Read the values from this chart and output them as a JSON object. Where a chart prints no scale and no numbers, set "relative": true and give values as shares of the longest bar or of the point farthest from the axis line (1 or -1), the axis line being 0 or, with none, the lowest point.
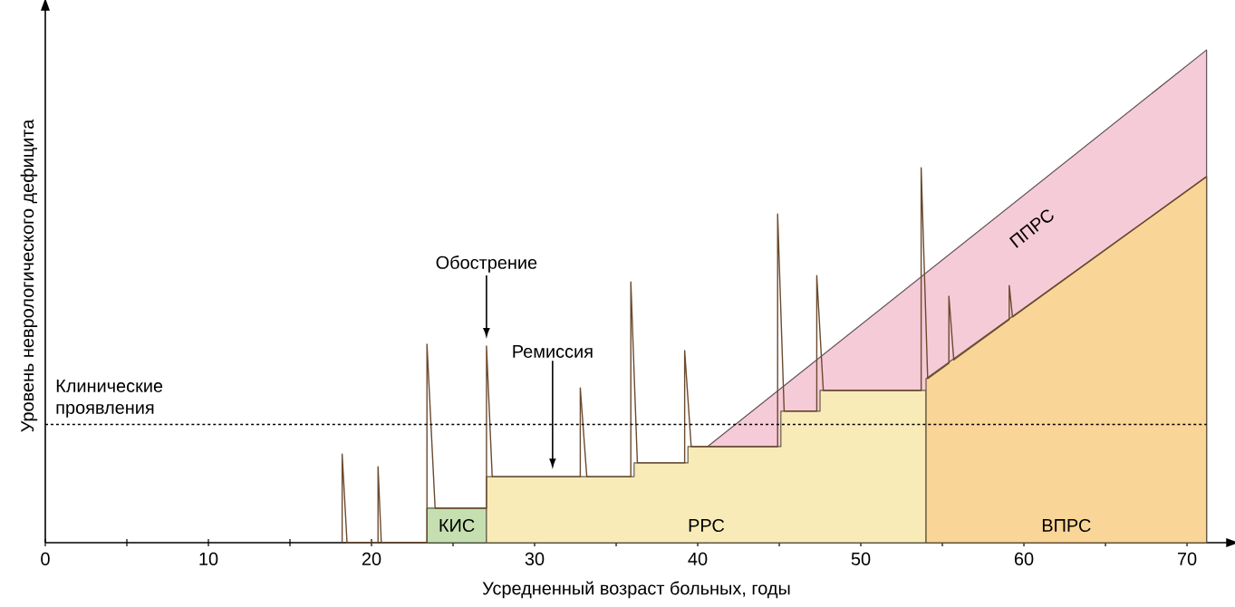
{
  "chart_data": {
    "type": "area",
    "relative": true,
    "xlabel": "Усредненный возраст больных, годы",
    "ylabel": "Уровень неврологического дефицита",
    "xlim": [
      0,
      72.5
    ],
    "xticks": [
      0,
      {
        "value": 5,
        "label": null
      },
      10,
      {
        "value": 15,
        "label": null
      },
      20,
      {
        "value": 25,
        "label": null
      },
      30,
      {
        "value": 35,
        "label": null
      },
      40,
      {
        "value": 45,
        "label": null
      },
      50,
      {
        "value": 55,
        "label": null
      },
      60,
      {
        "value": 65,
        "label": null
      },
      70
    ],
    "series": [
      {
        "name": "ППРС",
        "color": "#f6cbd8",
        "x": [
          40.6,
          71.2
        ],
        "values": [
          0.195,
          1.0
        ]
      },
      {
        "name": "КИС",
        "color": "#c5dfb0",
        "x": [
          23.4,
          27.05
        ],
        "values": [
          0.07,
          0.07
        ]
      },
      {
        "name": "РРС",
        "color": "#f9ebb8",
        "x": [
          27.05,
          36.1,
          36.1,
          39.4,
          39.4,
          45.1,
          45.1,
          47.5,
          47.5,
          54.0
        ],
        "values": [
          0.134,
          0.134,
          0.162,
          0.162,
          0.195,
          0.195,
          0.267,
          0.267,
          0.309,
          0.309
        ]
      },
      {
        "name": "ВПРС",
        "color": "#f9d597",
        "x": [
          54.0,
          54.0,
          71.2
        ],
        "values": [
          0,
          0.333,
          0.743
        ]
      },
      {
        "type": "line",
        "color": "#6b4a2e",
        "x": [
          18.2,
          18.2,
          18.5,
          20.4,
          20.4,
          20.6,
          23.4,
          23.4,
          23.9,
          27.05,
          27.05,
          27.4,
          32.8,
          32.8,
          33.2,
          35.9,
          35.9,
          36.3,
          39.2,
          39.2,
          39.6,
          44.9,
          44.9,
          45.3,
          47.3,
          47.3,
          47.7,
          53.7,
          53.7,
          54.1,
          55.4,
          55.4,
          55.7,
          59.1,
          59.1,
          59.3,
          71.2
        ],
        "values": [
          0,
          0.18,
          0,
          0,
          0.154,
          0,
          0,
          0.403,
          0.07,
          0.07,
          0.399,
          0.134,
          0.134,
          0.314,
          0.134,
          0.134,
          0.529,
          0.162,
          0.162,
          0.39,
          0.195,
          0.195,
          0.667,
          0.267,
          0.267,
          0.542,
          0.309,
          0.309,
          0.761,
          0.333,
          0.364,
          0.5,
          0.371,
          0.453,
          0.522,
          0.458,
          0.743
        ]
      }
    ],
    "ref_lines": [
      {
        "axis": "y",
        "value": 0.24,
        "label": "Клинические проявления",
        "color": "#000000",
        "line_style": "dashed"
      }
    ],
    "annotations": [
      "Обострение",
      "Ремиссия"
    ]
  }
}
